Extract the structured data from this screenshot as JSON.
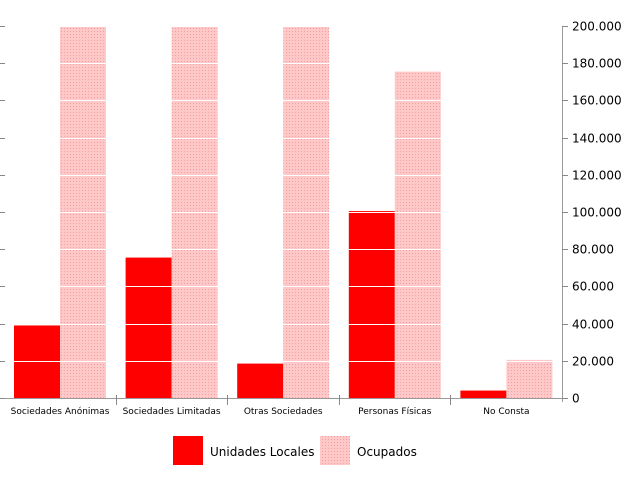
{
  "chart_data": {
    "type": "bar",
    "categories": [
      "Sociedades Anónimas",
      "Sociedades Limitadas",
      "Otras Sociedades",
      "Personas Físicas",
      "No Consta"
    ],
    "series": [
      {
        "name": "Unidades Locales",
        "values": [
          39000,
          75500,
          18500,
          100500,
          4000
        ]
      },
      {
        "name": "Ocupados",
        "values": [
          200000,
          200000,
          200000,
          175500,
          20500
        ]
      }
    ],
    "ylim": [
      0,
      200000
    ],
    "yticks": [
      0,
      20000,
      40000,
      60000,
      80000,
      100000,
      120000,
      140000,
      160000,
      180000,
      200000
    ],
    "ytick_labels": [
      "0",
      "20.000",
      "40.000",
      "60.000",
      "80.000",
      "100.000",
      "120.000",
      "140.000",
      "160.000",
      "180.000",
      "200.000"
    ],
    "y_axis_position": "right",
    "grid": true,
    "legend_position": "bottom-center",
    "colors": {
      "Unidades Locales": "#ff0000",
      "Ocupados": "#ffc8c8"
    }
  }
}
